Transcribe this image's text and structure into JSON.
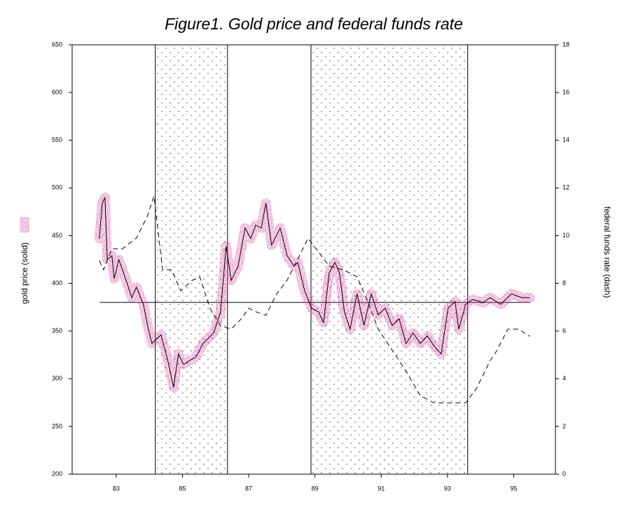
{
  "chart_data": {
    "type": "line",
    "title": "Figure1. Gold price and federal funds rate",
    "ylabel": "gold price (solid)",
    "y2label": "federal funds rate (dash)",
    "xlim": [
      81.67,
      96.26
    ],
    "xticks": [
      83,
      85,
      87,
      89,
      91,
      93,
      95
    ],
    "ylim": [
      200,
      650
    ],
    "yticks": [
      200,
      250,
      300,
      350,
      400,
      450,
      500,
      550,
      600,
      650
    ],
    "y2lim": [
      0,
      18
    ],
    "y2ticks": [
      0,
      2,
      4,
      6,
      8,
      10,
      12,
      14,
      16,
      18
    ],
    "shaded_periods": [
      [
        84.18,
        86.36
      ],
      [
        88.88,
        93.61
      ]
    ],
    "reference_line": {
      "value": 380,
      "x": [
        82.5,
        95.5
      ]
    },
    "series": [
      {
        "name": "gold price",
        "color": "#000000",
        "halo_color": "#d9409e",
        "dash": false,
        "x": [
          82.49,
          82.58,
          82.66,
          82.73,
          82.87,
          82.94,
          83.08,
          83.3,
          83.47,
          83.61,
          83.82,
          83.97,
          84.08,
          84.35,
          84.56,
          84.73,
          84.88,
          85.03,
          85.41,
          85.62,
          85.94,
          86.15,
          86.32,
          86.47,
          86.68,
          86.89,
          87.06,
          87.21,
          87.38,
          87.52,
          87.69,
          87.95,
          88.16,
          88.37,
          88.48,
          88.69,
          88.9,
          89.11,
          89.26,
          89.43,
          89.6,
          89.74,
          89.89,
          90.06,
          90.27,
          90.48,
          90.7,
          90.91,
          91.12,
          91.33,
          91.54,
          91.75,
          91.96,
          92.18,
          92.39,
          92.6,
          92.81,
          93.02,
          93.23,
          93.34,
          93.55,
          93.76,
          94.08,
          94.29,
          94.61,
          94.93,
          95.24,
          95.49
        ],
        "values": [
          447,
          484,
          490,
          425,
          429,
          405,
          425,
          403,
          385,
          396,
          378,
          352,
          337,
          346,
          319,
          291,
          326,
          315,
          323,
          337,
          348,
          370,
          439,
          403,
          418,
          458,
          447,
          461,
          458,
          484,
          440,
          458,
          429,
          418,
          422,
          392,
          374,
          370,
          359,
          411,
          422,
          411,
          370,
          352,
          389,
          356,
          389,
          367,
          374,
          356,
          363,
          337,
          348,
          337,
          345,
          334,
          326,
          374,
          381,
          352,
          378,
          383,
          380,
          385,
          378,
          389,
          385,
          385
        ]
      },
      {
        "name": "federal funds rate",
        "color": "#000000",
        "dash": true,
        "axis": "y2",
        "x": [
          82.49,
          82.62,
          82.87,
          83.19,
          83.61,
          83.93,
          84.14,
          84.4,
          84.67,
          84.95,
          85.3,
          85.52,
          85.83,
          86.15,
          86.47,
          86.78,
          87.0,
          87.21,
          87.52,
          87.84,
          88.16,
          88.48,
          88.79,
          89.11,
          89.43,
          89.85,
          90.27,
          90.59,
          90.91,
          91.33,
          91.75,
          92.18,
          92.6,
          93.02,
          93.55,
          93.87,
          94.29,
          94.5,
          94.82,
          95.14,
          95.49
        ],
        "values": [
          8.95,
          8.57,
          9.45,
          9.45,
          9.9,
          10.78,
          11.66,
          8.57,
          8.57,
          7.69,
          8.13,
          8.28,
          6.96,
          6.22,
          6.08,
          6.52,
          6.96,
          6.81,
          6.66,
          7.55,
          8.13,
          9.01,
          9.89,
          9.31,
          8.72,
          8.57,
          8.28,
          7.25,
          6.08,
          5.2,
          4.32,
          3.29,
          2.99,
          2.99,
          2.99,
          3.58,
          4.76,
          5.2,
          6.08,
          6.08,
          5.78
        ]
      }
    ]
  }
}
